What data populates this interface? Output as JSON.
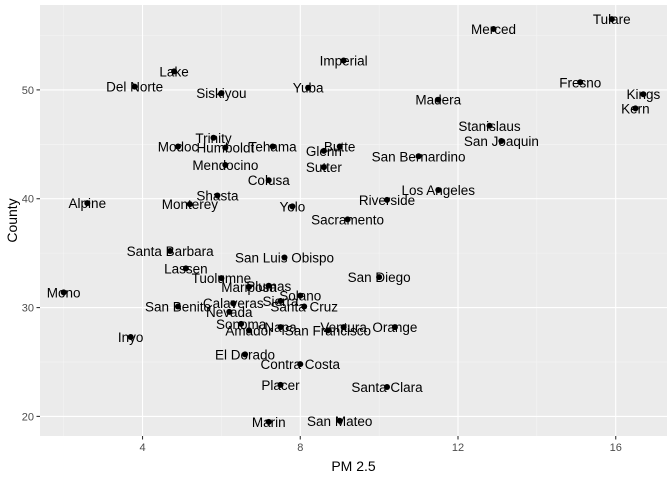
{
  "chart_data": {
    "type": "scatter",
    "xlabel": "PM 2.5",
    "ylabel": "County",
    "xlim": [
      1.4,
      17.3
    ],
    "ylim": [
      18.2,
      57.8
    ],
    "x_ticks": [
      4,
      8,
      12,
      16
    ],
    "y_ticks": [
      20,
      30,
      40,
      50
    ],
    "grid": true,
    "colors": {
      "panel": "#EBEBEB",
      "grid_major": "#FFFFFF",
      "point": "#000000"
    },
    "points": [
      {
        "label": "Tulare",
        "x": 15.9,
        "y": 56.5
      },
      {
        "label": "Merced",
        "x": 12.9,
        "y": 55.6
      },
      {
        "label": "Imperial",
        "x": 9.1,
        "y": 52.7
      },
      {
        "label": "Lake",
        "x": 4.8,
        "y": 51.7
      },
      {
        "label": "Fresno",
        "x": 15.1,
        "y": 50.7
      },
      {
        "label": "Del Norte",
        "x": 3.8,
        "y": 50.3
      },
      {
        "label": "Yuba",
        "x": 8.2,
        "y": 50.2
      },
      {
        "label": "Siskiyou",
        "x": 6.0,
        "y": 49.7
      },
      {
        "label": "Kings",
        "x": 16.7,
        "y": 49.6
      },
      {
        "label": "Madera",
        "x": 11.5,
        "y": 49.1
      },
      {
        "label": "Kern",
        "x": 16.5,
        "y": 48.3
      },
      {
        "label": "Stanislaus",
        "x": 12.8,
        "y": 46.7
      },
      {
        "label": "Trinity",
        "x": 5.8,
        "y": 45.6
      },
      {
        "label": "San Joaquin",
        "x": 13.1,
        "y": 45.3
      },
      {
        "label": "Modoc",
        "x": 4.9,
        "y": 44.8
      },
      {
        "label": "Butte",
        "x": 9.0,
        "y": 44.8
      },
      {
        "label": "Humboldt",
        "x": 6.1,
        "y": 44.7
      },
      {
        "label": "Tehama",
        "x": 7.3,
        "y": 44.8
      },
      {
        "label": "Glenn",
        "x": 8.6,
        "y": 44.4
      },
      {
        "label": "San Bernardino",
        "x": 11.0,
        "y": 43.9
      },
      {
        "label": "Mendocino",
        "x": 6.1,
        "y": 43.1
      },
      {
        "label": "Sutter",
        "x": 8.6,
        "y": 42.9
      },
      {
        "label": "Colusa",
        "x": 7.2,
        "y": 41.7
      },
      {
        "label": "Los Angeles",
        "x": 11.5,
        "y": 40.8
      },
      {
        "label": "Shasta",
        "x": 5.9,
        "y": 40.3
      },
      {
        "label": "Riverside",
        "x": 10.2,
        "y": 39.9
      },
      {
        "label": "Alpine",
        "x": 2.6,
        "y": 39.6
      },
      {
        "label": "Monterey",
        "x": 5.2,
        "y": 39.5
      },
      {
        "label": "Yolo",
        "x": 7.8,
        "y": 39.3
      },
      {
        "label": "Sacramento",
        "x": 9.2,
        "y": 38.1
      },
      {
        "label": "Santa Barbara",
        "x": 4.7,
        "y": 35.2
      },
      {
        "label": "San Luis Obispo",
        "x": 7.6,
        "y": 34.6
      },
      {
        "label": "Lassen",
        "x": 5.1,
        "y": 33.6
      },
      {
        "label": "San Diego",
        "x": 10.0,
        "y": 32.8
      },
      {
        "label": "Tuolumne",
        "x": 6.0,
        "y": 32.7
      },
      {
        "label": "Mariposa",
        "x": 6.7,
        "y": 31.9
      },
      {
        "label": "Plumas",
        "x": 7.2,
        "y": 32.0
      },
      {
        "label": "Mono",
        "x": 2.0,
        "y": 31.4
      },
      {
        "label": "Solano",
        "x": 8.0,
        "y": 31.1
      },
      {
        "label": "Sierra",
        "x": 7.5,
        "y": 30.6
      },
      {
        "label": "Calaveras",
        "x": 6.3,
        "y": 30.4
      },
      {
        "label": "San Benito",
        "x": 4.9,
        "y": 30.1
      },
      {
        "label": "Santa Cruz",
        "x": 8.1,
        "y": 30.1
      },
      {
        "label": "Nevada",
        "x": 6.2,
        "y": 29.6
      },
      {
        "label": "Sonoma",
        "x": 6.5,
        "y": 28.5
      },
      {
        "label": "Napa",
        "x": 7.5,
        "y": 28.2
      },
      {
        "label": "Ventura",
        "x": 9.1,
        "y": 28.2
      },
      {
        "label": "Orange",
        "x": 10.4,
        "y": 28.2
      },
      {
        "label": "Amador",
        "x": 6.7,
        "y": 27.9
      },
      {
        "label": "San Francisco",
        "x": 8.7,
        "y": 27.9
      },
      {
        "label": "Inyo",
        "x": 3.7,
        "y": 27.3
      },
      {
        "label": "El Dorado",
        "x": 6.6,
        "y": 25.7
      },
      {
        "label": "Contra Costa",
        "x": 8.0,
        "y": 24.8
      },
      {
        "label": "Placer",
        "x": 7.5,
        "y": 22.9
      },
      {
        "label": "Santa Clara",
        "x": 10.2,
        "y": 22.7
      },
      {
        "label": "Marin",
        "x": 7.2,
        "y": 19.5
      },
      {
        "label": "San Mateo",
        "x": 9.0,
        "y": 19.6
      }
    ]
  }
}
